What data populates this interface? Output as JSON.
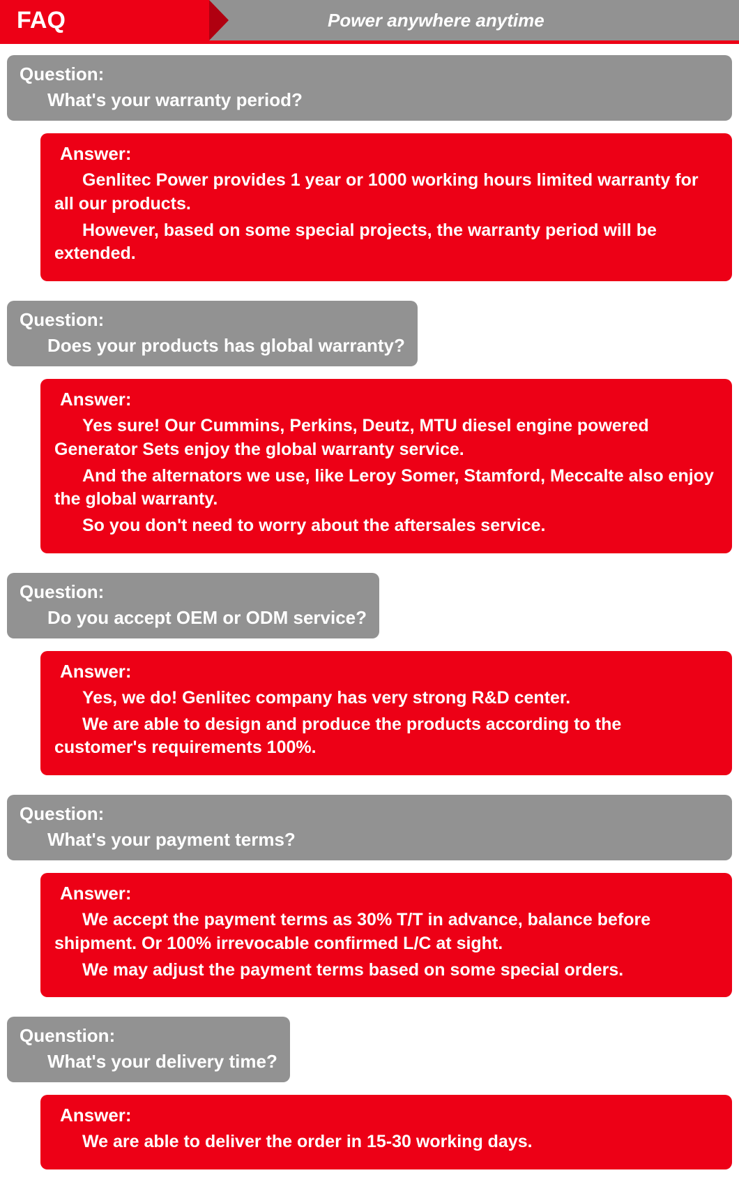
{
  "header": {
    "title": "FAQ",
    "tagline": "Power anywhere anytime"
  },
  "colors": {
    "red": "#ed0016",
    "gray": "#929292",
    "dark_red": "#b00010",
    "text": "#ffffff"
  },
  "faq": [
    {
      "q_label": "Question:",
      "q_text": "What's your warranty period?",
      "q_wide": true,
      "a_label": "Answer:",
      "a_paras": [
        "Genlitec Power provides 1 year or 1000 working hours limited warranty for all our products.",
        "However, based on some special projects, the warranty period will be extended."
      ]
    },
    {
      "q_label": "Question:",
      "q_text": "Does your products has global warranty?",
      "q_wide": false,
      "a_label": "Answer:",
      "a_paras": [
        "Yes sure! Our Cummins, Perkins, Deutz, MTU diesel engine powered Generator Sets enjoy the global warranty service.",
        "And the alternators we use, like Leroy Somer, Stamford, Meccalte also enjoy the global warranty.",
        "So you don't need to worry about the aftersales service."
      ]
    },
    {
      "q_label": "Question:",
      "q_text": "Do you accept OEM or ODM service?",
      "q_wide": false,
      "a_label": "Answer:",
      "a_paras": [
        "Yes, we do! Genlitec company has very strong R&D center.",
        "We are able to design and produce the products according to the customer's requirements 100%."
      ]
    },
    {
      "q_label": "Question:",
      "q_text": "What's your payment terms?",
      "q_wide": true,
      "a_label": "Answer:",
      "a_paras": [
        "We accept the payment terms as 30% T/T in advance, balance before shipment. Or 100% irrevocable confirmed L/C at sight.",
        "We may adjust the payment terms based on some special orders."
      ]
    },
    {
      "q_label": "Quenstion:",
      "q_text": "What's your delivery time?",
      "q_wide": false,
      "a_label": "Answer:",
      "a_paras": [
        "We are able to deliver the order in 15-30 working days."
      ]
    }
  ]
}
